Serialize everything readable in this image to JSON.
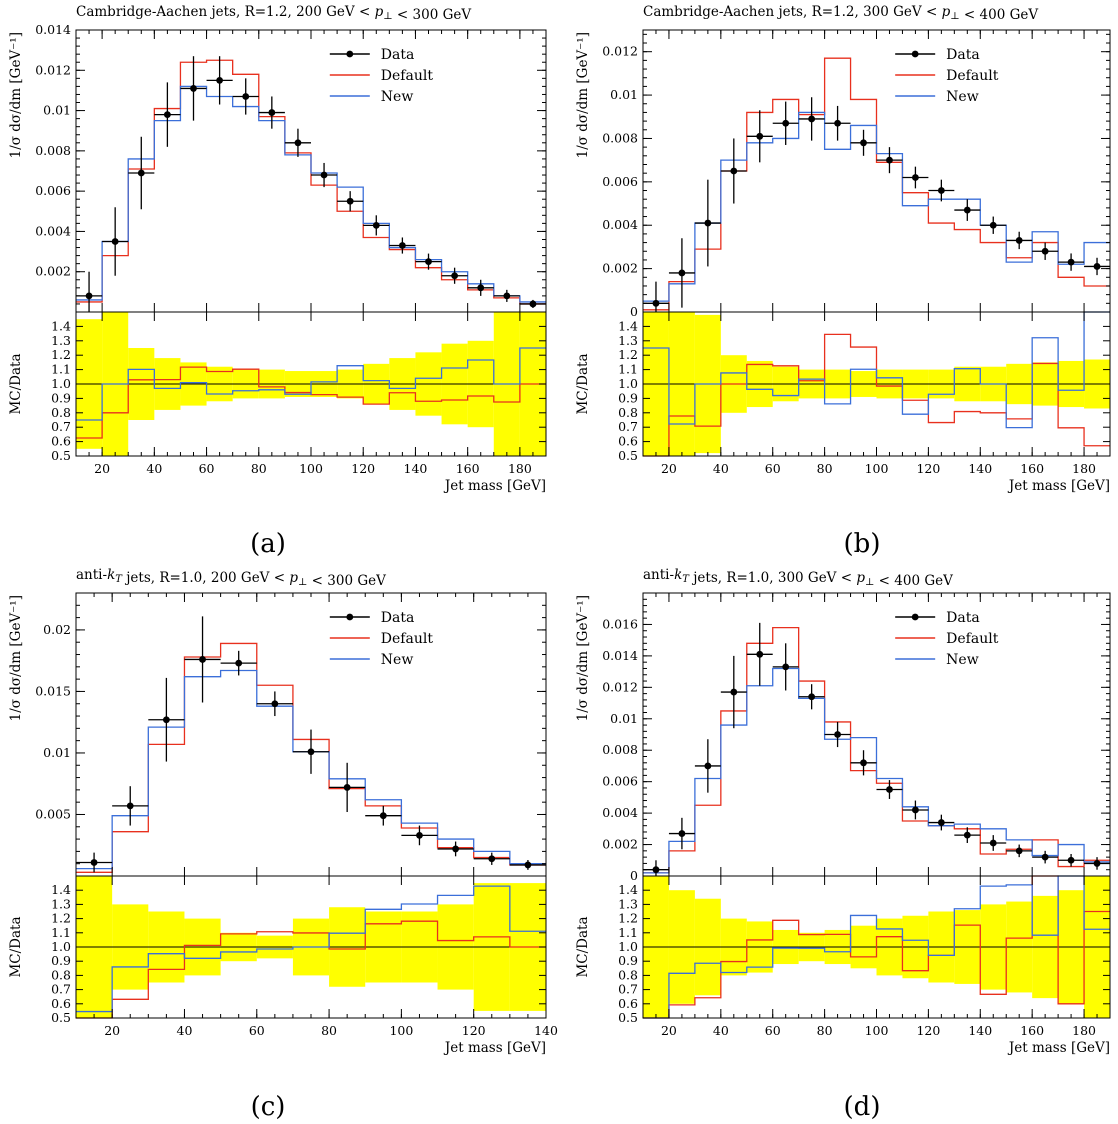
{
  "colors": {
    "data": "#000000",
    "default": "#e8301e",
    "new": "#3b6fd9",
    "band": "#ffff00"
  },
  "chart_data": [
    {
      "panel": "a",
      "type": "line",
      "caption": "(a)",
      "title": "Cambridge-Aachen jets, R=1.2, 200 GeV < p⊥ < 300 GeV",
      "ylabel": "1/σ dσ/dm [GeV⁻¹]",
      "ratio_ylabel": "MC/Data",
      "xlabel": "Jet mass [GeV]",
      "legend": [
        "Data",
        "Default",
        "New"
      ],
      "xlim": [
        10,
        190
      ],
      "ylim": [
        0,
        0.014
      ],
      "yticks": [
        0.002,
        0.004,
        0.006,
        0.008,
        0.01,
        0.012,
        0.014
      ],
      "yticklabels": [
        "0.002",
        "0.004",
        "0.006",
        "0.008",
        "0.01",
        "0.012",
        "0.014"
      ],
      "xticks": [
        20,
        40,
        60,
        80,
        100,
        120,
        140,
        160,
        180
      ],
      "ratio_ylim": [
        0.5,
        1.5
      ],
      "edges": [
        10,
        20,
        30,
        40,
        50,
        60,
        70,
        80,
        90,
        100,
        110,
        120,
        130,
        140,
        150,
        160,
        170,
        180,
        190
      ],
      "data": [
        0.0008,
        0.0035,
        0.0069,
        0.0098,
        0.0111,
        0.0115,
        0.0107,
        0.0099,
        0.0084,
        0.0068,
        0.0055,
        0.0043,
        0.0033,
        0.0025,
        0.0018,
        0.0012,
        0.0008,
        0.0004
      ],
      "data_err": [
        0.0012,
        0.0017,
        0.0018,
        0.0016,
        0.0016,
        0.0012,
        0.0009,
        0.0008,
        0.0007,
        0.0006,
        0.0005,
        0.0005,
        0.0004,
        0.0004,
        0.0004,
        0.0004,
        0.0003,
        0.0002
      ],
      "series": [
        {
          "name": "Default",
          "values": [
            0.0005,
            0.0028,
            0.0071,
            0.0101,
            0.0124,
            0.0125,
            0.0118,
            0.0097,
            0.0079,
            0.0063,
            0.005,
            0.0037,
            0.0031,
            0.0022,
            0.0016,
            0.0011,
            0.0007,
            0.0004
          ]
        },
        {
          "name": "New",
          "values": [
            0.0006,
            0.0035,
            0.0076,
            0.0095,
            0.0112,
            0.0107,
            0.0102,
            0.0095,
            0.0078,
            0.0069,
            0.0062,
            0.0044,
            0.0032,
            0.0026,
            0.002,
            0.0014,
            0.0008,
            0.0005
          ]
        }
      ],
      "ratio_band": [
        0.45,
        0.55,
        0.25,
        0.18,
        0.15,
        0.12,
        0.1,
        0.1,
        0.09,
        0.09,
        0.1,
        0.14,
        0.18,
        0.22,
        0.28,
        0.3,
        0.5,
        0.55
      ]
    },
    {
      "panel": "b",
      "type": "line",
      "caption": "(b)",
      "title": "Cambridge-Aachen jets, R=1.2, 300 GeV < p⊥ < 400 GeV",
      "ylabel": "1/σ dσ/dm [GeV⁻¹]",
      "ratio_ylabel": "MC/Data",
      "xlabel": "Jet mass [GeV]",
      "legend": [
        "Data",
        "Default",
        "New"
      ],
      "xlim": [
        10,
        190
      ],
      "ylim": [
        0,
        0.013
      ],
      "yticks": [
        0,
        0.002,
        0.004,
        0.006,
        0.008,
        0.01,
        0.012
      ],
      "yticklabels": [
        "0",
        "0.002",
        "0.004",
        "0.006",
        "0.008",
        "0.01",
        "0.012"
      ],
      "xticks": [
        20,
        40,
        60,
        80,
        100,
        120,
        140,
        160,
        180
      ],
      "ratio_ylim": [
        0.5,
        1.5
      ],
      "edges": [
        10,
        20,
        30,
        40,
        50,
        60,
        70,
        80,
        90,
        100,
        110,
        120,
        130,
        140,
        150,
        160,
        170,
        180,
        190
      ],
      "data": [
        0.0004,
        0.0018,
        0.0041,
        0.0065,
        0.0081,
        0.0087,
        0.0089,
        0.0087,
        0.0078,
        0.007,
        0.0062,
        0.0056,
        0.0047,
        0.004,
        0.0033,
        0.0028,
        0.0023,
        0.0021
      ],
      "data_err": [
        0.001,
        0.0016,
        0.002,
        0.0015,
        0.0012,
        0.001,
        0.001,
        0.0008,
        0.0006,
        0.0006,
        0.0005,
        0.0005,
        0.0005,
        0.0004,
        0.0004,
        0.0004,
        0.0004,
        0.0004
      ],
      "series": [
        {
          "name": "Default",
          "values": [
            0.0001,
            0.0014,
            0.0029,
            0.0065,
            0.0092,
            0.0098,
            0.0091,
            0.0117,
            0.0098,
            0.0069,
            0.0055,
            0.0041,
            0.0038,
            0.0032,
            0.0025,
            0.0032,
            0.0016,
            0.0012
          ]
        },
        {
          "name": "New",
          "values": [
            0.0005,
            0.0013,
            0.0041,
            0.007,
            0.0078,
            0.008,
            0.0092,
            0.0075,
            0.0086,
            0.0073,
            0.0049,
            0.0052,
            0.0052,
            0.004,
            0.0023,
            0.0037,
            0.0022,
            0.0032
          ]
        }
      ],
      "ratio_band": [
        0.5,
        0.6,
        0.48,
        0.2,
        0.16,
        0.12,
        0.1,
        0.1,
        0.09,
        0.1,
        0.1,
        0.1,
        0.12,
        0.12,
        0.14,
        0.15,
        0.16,
        0.17
      ]
    },
    {
      "panel": "c",
      "type": "line",
      "caption": "(c)",
      "title": "anti-kT jets, R=1.0, 200 GeV < p⊥ < 300 GeV",
      "ylabel": "1/σ dσ/dm [GeV⁻¹]",
      "ratio_ylabel": "MC/Data",
      "xlabel": "Jet mass [GeV]",
      "legend": [
        "Data",
        "Default",
        "New"
      ],
      "xlim": [
        10,
        140
      ],
      "ylim": [
        0,
        0.023
      ],
      "yticks": [
        0.005,
        0.01,
        0.015,
        0.02
      ],
      "yticklabels": [
        "0.005",
        "0.01",
        "0.015",
        "0.02"
      ],
      "xticks": [
        20,
        40,
        60,
        80,
        100,
        120,
        140
      ],
      "ratio_ylim": [
        0.5,
        1.5
      ],
      "edges": [
        10,
        20,
        30,
        40,
        50,
        60,
        70,
        80,
        90,
        100,
        110,
        120,
        130,
        140
      ],
      "data": [
        0.0011,
        0.0057,
        0.0127,
        0.0176,
        0.0173,
        0.014,
        0.0101,
        0.0072,
        0.0049,
        0.0033,
        0.0022,
        0.0014,
        0.0009
      ],
      "data_err": [
        0.0008,
        0.0016,
        0.0034,
        0.0035,
        0.001,
        0.001,
        0.0018,
        0.002,
        0.0008,
        0.0008,
        0.0006,
        0.0005,
        0.0004
      ],
      "series": [
        {
          "name": "Default",
          "values": [
            0.0003,
            0.0036,
            0.0107,
            0.0178,
            0.0189,
            0.0155,
            0.0111,
            0.0071,
            0.0057,
            0.0039,
            0.0023,
            0.0015,
            0.0009
          ]
        },
        {
          "name": "New",
          "values": [
            0.0006,
            0.0049,
            0.0121,
            0.0162,
            0.0167,
            0.0138,
            0.0101,
            0.0079,
            0.0062,
            0.0043,
            0.003,
            0.002,
            0.001
          ]
        }
      ],
      "ratio_band": [
        0.7,
        0.3,
        0.25,
        0.2,
        0.1,
        0.08,
        0.2,
        0.28,
        0.25,
        0.25,
        0.3,
        0.45,
        0.45
      ]
    },
    {
      "panel": "d",
      "type": "line",
      "caption": "(d)",
      "title": "anti-kT jets, R=1.0, 300 GeV < p⊥ < 400 GeV",
      "ylabel": "1/σ dσ/dm [GeV⁻¹]",
      "ratio_ylabel": "MC/Data",
      "xlabel": "Jet mass [GeV]",
      "legend": [
        "Data",
        "Default",
        "New"
      ],
      "xlim": [
        10,
        190
      ],
      "ylim": [
        0,
        0.018
      ],
      "yticks": [
        0,
        0.002,
        0.004,
        0.006,
        0.008,
        0.01,
        0.012,
        0.014,
        0.016
      ],
      "yticklabels": [
        "0",
        "0.002",
        "0.004",
        "0.006",
        "0.008",
        "0.01",
        "0.012",
        "0.014",
        "0.016"
      ],
      "xticks": [
        20,
        40,
        60,
        80,
        100,
        120,
        140,
        160,
        180
      ],
      "ratio_ylim": [
        0.5,
        1.5
      ],
      "edges": [
        10,
        20,
        30,
        40,
        50,
        60,
        70,
        80,
        90,
        100,
        110,
        120,
        130,
        140,
        150,
        160,
        170,
        180,
        190
      ],
      "data": [
        0.0004,
        0.0027,
        0.007,
        0.0117,
        0.0141,
        0.0133,
        0.0114,
        0.009,
        0.0072,
        0.0055,
        0.0042,
        0.0034,
        0.0026,
        0.0021,
        0.0016,
        0.0012,
        0.001,
        0.0008
      ],
      "data_err": [
        0.0006,
        0.001,
        0.0017,
        0.0023,
        0.002,
        0.0015,
        0.0008,
        0.0008,
        0.0008,
        0.0006,
        0.0006,
        0.0005,
        0.0005,
        0.0005,
        0.0004,
        0.0004,
        0.0004,
        0.0004
      ],
      "series": [
        {
          "name": "Default",
          "values": [
            0.0002,
            0.0016,
            0.0045,
            0.0105,
            0.0148,
            0.0158,
            0.0124,
            0.0098,
            0.0067,
            0.0059,
            0.0035,
            0.0032,
            0.003,
            0.0014,
            0.0017,
            0.0023,
            0.0006,
            0.001
          ]
        },
        {
          "name": "New",
          "values": [
            0.0002,
            0.0022,
            0.0062,
            0.0096,
            0.0121,
            0.0132,
            0.0113,
            0.0087,
            0.0088,
            0.0062,
            0.0044,
            0.0032,
            0.0033,
            0.003,
            0.0023,
            0.0013,
            0.002,
            0.0009
          ]
        }
      ],
      "ratio_band": [
        0.55,
        0.4,
        0.34,
        0.2,
        0.18,
        0.12,
        0.1,
        0.12,
        0.15,
        0.2,
        0.22,
        0.25,
        0.26,
        0.3,
        0.32,
        0.36,
        0.4,
        0.5
      ]
    }
  ]
}
